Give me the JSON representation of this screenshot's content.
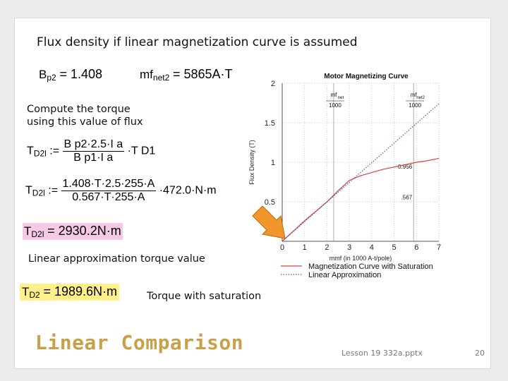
{
  "slide": {
    "heading": "Flux density if linear magnetization curve is assumed",
    "compute_note_line1": "Compute the torque",
    "compute_note_line2": "using this value of flux",
    "linear_label": "Linear approximation torque value",
    "saturation_label": "Torque with saturation",
    "footer_title": "Linear Comparison",
    "footer_file": "Lesson 19 332a.pptx",
    "page_number": "20",
    "arrow_color": "#f0962a"
  },
  "equations": {
    "bp2_lhs": "B",
    "bp2_sub": "p2",
    "bp2_val": "= 1.408",
    "mf_lhs": "mf",
    "mf_sub": "net2",
    "mf_val": "= 5865A·T",
    "t1_lhs": "T",
    "t1_sub": "D2l",
    "t1_assign": ":=",
    "t1_num": "B p2·2.5·I a",
    "t1_den": "B p1·I a",
    "t1_tail": "·T D1",
    "t2_lhs": "T",
    "t2_sub": "D2l",
    "t2_assign": ":=",
    "t2_num": "1.408·T·2.5·255·A",
    "t2_den": "0.567·T·255·A",
    "t2_tail": "·472.0·N·m",
    "t3_lhs": "T",
    "t3_sub": "D2l",
    "t3_val": "= 2930.2N·m",
    "t4_lhs": "T",
    "t4_sub": "D2",
    "t4_val": "= 1989.6N·m"
  },
  "chart_data": {
    "type": "line",
    "title": "Motor Magnetizing Curve",
    "xlabel": "mmf (in 1000 A-t/pole)",
    "ylabel": "Flux Density (T)",
    "xlim": [
      0,
      7
    ],
    "ylim": [
      0,
      2
    ],
    "xticks": [
      "0",
      "1",
      "2",
      "3",
      "4",
      "5",
      "6",
      "7"
    ],
    "yticks": [
      "0.5",
      "1",
      "1.5",
      "2"
    ],
    "series": [
      {
        "name": "Magnetization Curve with Saturation",
        "color": "#d84040",
        "style": "solid",
        "x": [
          0,
          0.5,
          1,
          1.5,
          2,
          2.5,
          3,
          3.5,
          4,
          4.5,
          5,
          5.5,
          6,
          6.5,
          7
        ],
        "y": [
          0,
          0.13,
          0.26,
          0.38,
          0.5,
          0.64,
          0.77,
          0.83,
          0.87,
          0.91,
          0.94,
          0.97,
          1.0,
          1.02,
          1.05
        ]
      },
      {
        "name": "Linear Approximation",
        "color": "#4060b0",
        "style": "dotted",
        "x": [
          0,
          7
        ],
        "y": [
          0,
          1.74
        ]
      }
    ],
    "annotations": [
      {
        "text": "mf",
        "sub": "net",
        "den": "1000",
        "x": 2.3
      },
      {
        "text": "mf",
        "sub": "net2",
        "den": "1000",
        "x": 5.87
      }
    ],
    "vlines": [
      2.3,
      5.87
    ],
    "hline_labels": [
      {
        "text": "0.956",
        "x": 5.87,
        "y": 0.956
      },
      {
        "text": ".567",
        "x": 5.87,
        "y": 0.567
      }
    ],
    "legend_placement": "bottom"
  }
}
